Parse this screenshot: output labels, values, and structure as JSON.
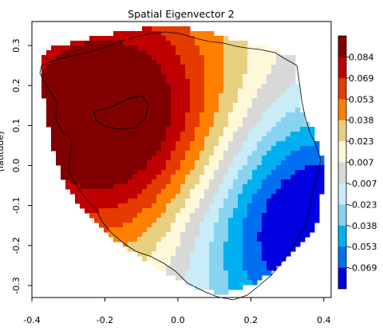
{
  "chart_data": {
    "type": "heatmap",
    "title": "Spatial Eigenvector  2",
    "xlabel": "",
    "ylabel": "(latitude)",
    "xlim": [
      -0.4,
      0.42
    ],
    "ylim": [
      -0.33,
      0.36
    ],
    "x_ticks": [
      "-0.4",
      "-0.2",
      "0.0",
      "0.2",
      "0.4"
    ],
    "x_tick_values": [
      -0.4,
      -0.2,
      0.0,
      0.2,
      0.4
    ],
    "y_ticks": [
      "-0.3",
      "-0.2",
      "-0.1",
      "0.0",
      "0.1",
      "0.2",
      "0.3"
    ],
    "y_tick_values": [
      -0.3,
      -0.2,
      -0.1,
      0.0,
      0.1,
      0.2,
      0.3
    ],
    "hot_center": [
      -0.15,
      0.1
    ],
    "cold_center": [
      0.33,
      -0.13
    ],
    "colorbar": {
      "labels": [
        "0.084",
        "0.069",
        "0.053",
        "0.038",
        "0.023",
        "0.007",
        "-0.007",
        "-0.023",
        "-0.038",
        "-0.053",
        "-0.069"
      ],
      "colors": [
        "#800000",
        "#c00000",
        "#e53a00",
        "#ff8000",
        "#e8d080",
        "#fdf8d8",
        "#d8d8d8",
        "#c8ecf8",
        "#88d4f0",
        "#00b0f0",
        "#0070f0",
        "#0000e0"
      ]
    }
  }
}
